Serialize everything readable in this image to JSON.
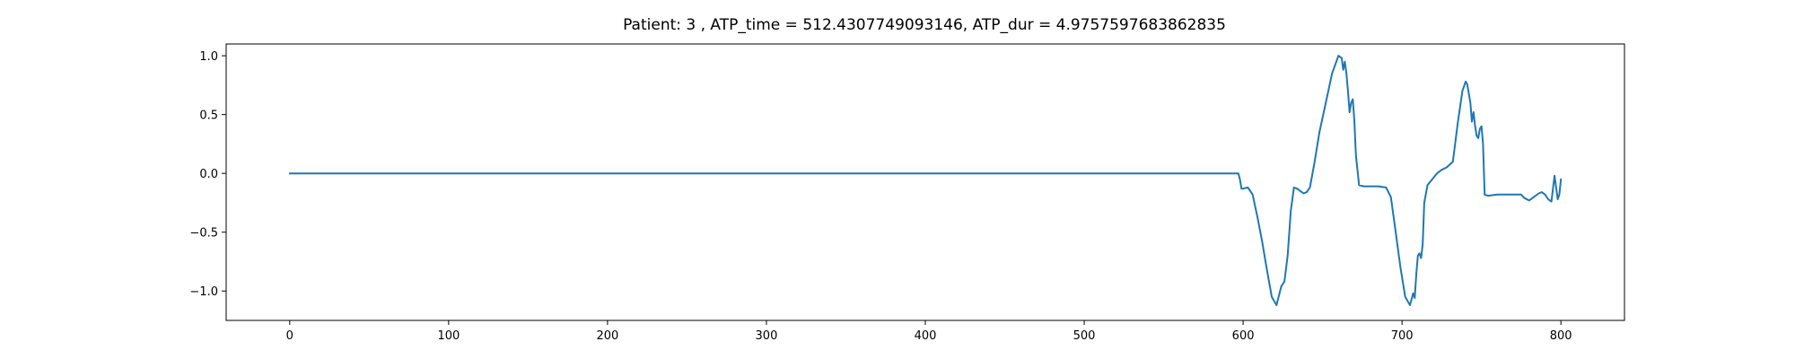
{
  "chart_data": {
    "type": "line",
    "title": "Patient: 3 , ATP_time = 512.4307749093146, ATP_dur = 4.9757597683862835",
    "xlabel": "",
    "ylabel": "",
    "xlim": [
      -40,
      840
    ],
    "ylim": [
      -1.25,
      1.1
    ],
    "xticks": [
      0,
      100,
      200,
      300,
      400,
      500,
      600,
      700,
      800
    ],
    "yticks": [
      1.0,
      0.5,
      0.0,
      -0.5,
      -1.0
    ],
    "xtick_labels": [
      "0",
      "100",
      "200",
      "300",
      "400",
      "500",
      "600",
      "700",
      "800"
    ],
    "ytick_labels": [
      "1.0",
      "0.5",
      "0.0",
      "−0.5",
      "−1.0"
    ],
    "grid": false,
    "series": [
      {
        "color": "#1f77b4",
        "x": [
          0,
          100,
          200,
          300,
          400,
          500,
          597,
          598,
          599,
          600,
          603,
          606,
          609,
          612,
          615,
          618,
          621,
          624,
          626,
          628,
          630,
          632,
          634,
          636,
          638,
          640,
          642,
          645,
          648,
          652,
          656,
          660,
          662,
          663,
          664,
          665,
          666,
          667,
          668,
          669,
          670,
          671,
          673,
          676,
          680,
          685,
          690,
          693,
          696,
          699,
          702,
          705,
          707,
          708,
          709,
          710,
          711,
          712,
          713,
          714,
          716,
          719,
          722,
          725,
          728,
          732,
          735,
          738,
          740,
          741,
          743,
          744,
          745,
          746,
          747,
          748,
          749,
          750,
          751,
          752,
          754,
          760,
          770,
          775,
          777,
          780,
          783,
          786,
          788,
          790,
          792,
          794,
          796,
          798,
          799,
          800
        ],
        "y": [
          0,
          0,
          0,
          0,
          0,
          0,
          0,
          -0.05,
          -0.13,
          -0.13,
          -0.12,
          -0.18,
          -0.37,
          -0.58,
          -0.82,
          -1.05,
          -1.12,
          -0.96,
          -0.92,
          -0.7,
          -0.32,
          -0.12,
          -0.13,
          -0.15,
          -0.17,
          -0.16,
          -0.12,
          0.1,
          0.35,
          0.6,
          0.85,
          1.0,
          0.98,
          0.88,
          0.95,
          0.85,
          0.7,
          0.52,
          0.6,
          0.63,
          0.45,
          0.15,
          -0.1,
          -0.11,
          -0.11,
          -0.11,
          -0.12,
          -0.2,
          -0.5,
          -0.8,
          -1.05,
          -1.12,
          -1.02,
          -1.06,
          -0.85,
          -0.7,
          -0.68,
          -0.72,
          -0.6,
          -0.25,
          -0.1,
          -0.05,
          0.0,
          0.03,
          0.05,
          0.1,
          0.42,
          0.7,
          0.78,
          0.76,
          0.6,
          0.44,
          0.52,
          0.4,
          0.32,
          0.3,
          0.38,
          0.4,
          0.25,
          -0.18,
          -0.19,
          -0.18,
          -0.18,
          -0.18,
          -0.21,
          -0.23,
          -0.2,
          -0.17,
          -0.16,
          -0.18,
          -0.22,
          -0.24,
          -0.02,
          -0.22,
          -0.18,
          -0.05
        ]
      }
    ]
  }
}
